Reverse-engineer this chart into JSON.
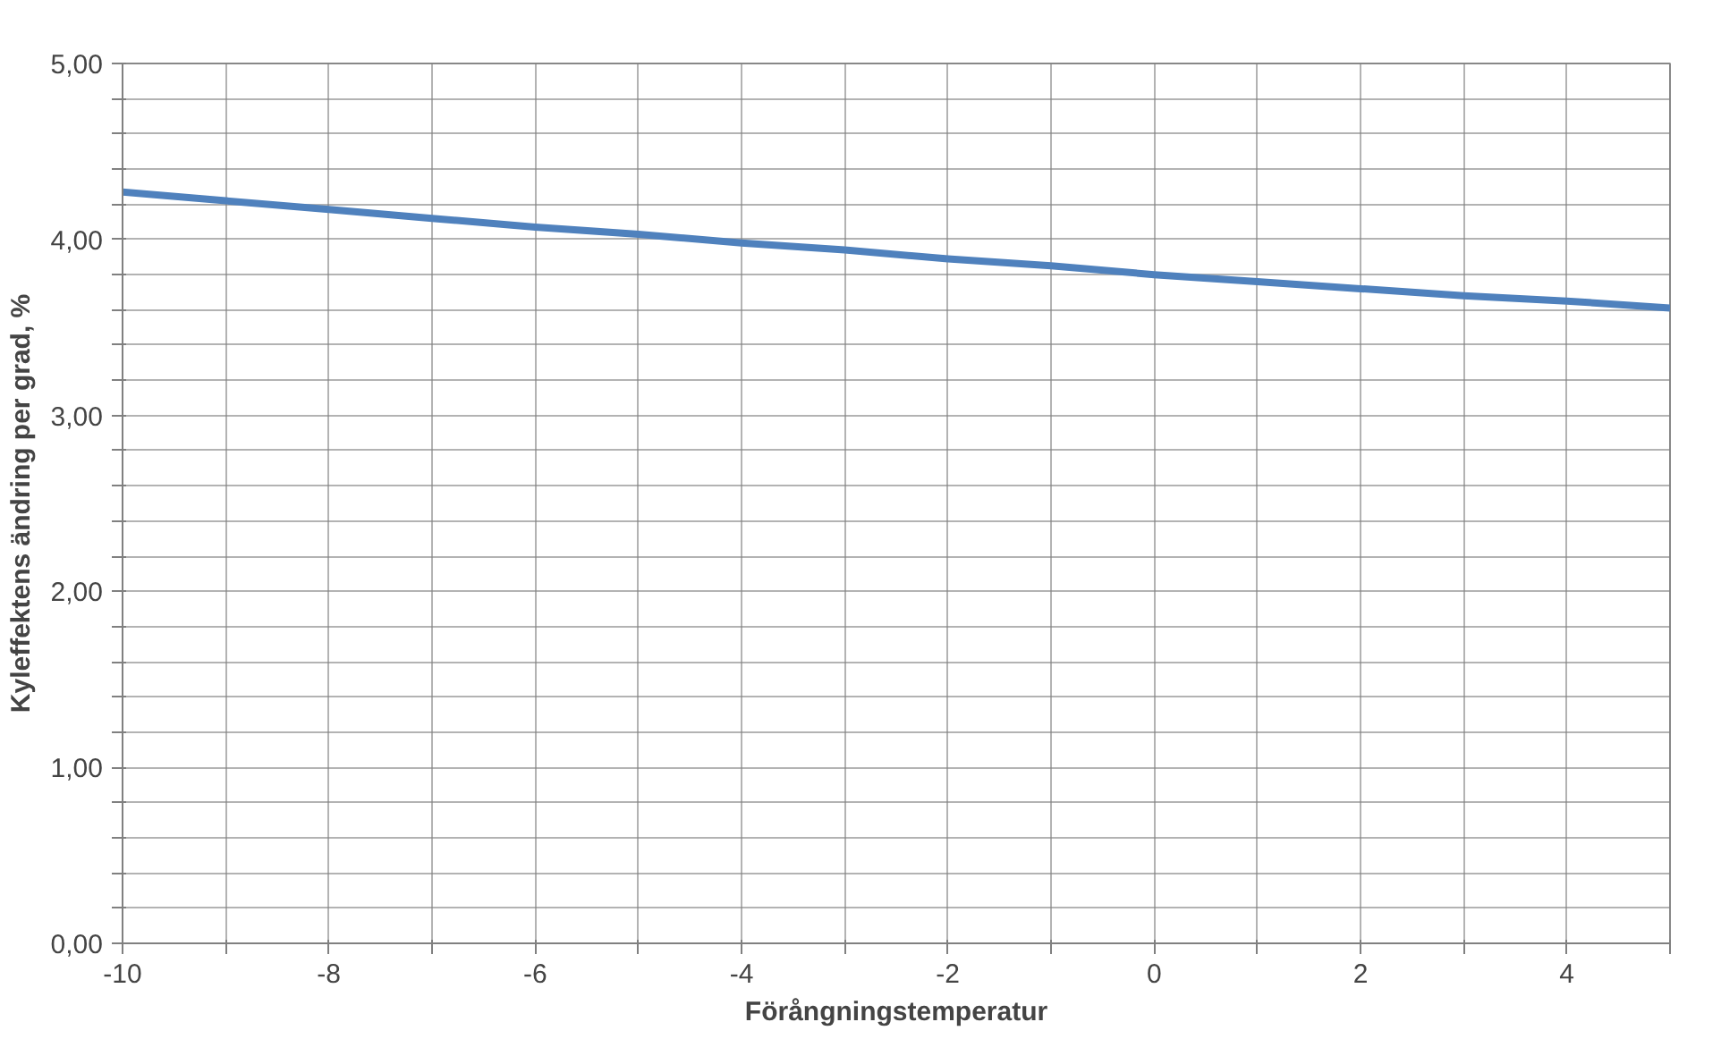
{
  "chart_data": {
    "type": "line",
    "xlabel": "Förångningstemperatur",
    "ylabel": "Kyleffektens ändring per grad, %",
    "x": [
      -10,
      -9,
      -8,
      -7,
      -6,
      -5,
      -4,
      -3,
      -2,
      -1,
      0,
      1,
      2,
      3,
      4,
      5
    ],
    "series": [
      {
        "color": "#4f81bd",
        "values": [
          4.27,
          4.22,
          4.17,
          4.12,
          4.07,
          4.03,
          3.98,
          3.94,
          3.89,
          3.85,
          3.8,
          3.76,
          3.72,
          3.68,
          3.65,
          3.61
        ]
      }
    ],
    "xlim": [
      -10,
      5
    ],
    "ylim": [
      0,
      5
    ],
    "xticks": [
      -10,
      {
        "value": -9,
        "label": null
      },
      -8,
      {
        "value": -7,
        "label": null
      },
      -6,
      {
        "value": -5,
        "label": null
      },
      -4,
      {
        "value": -3,
        "label": null
      },
      -2,
      {
        "value": -1,
        "label": null
      },
      0,
      {
        "value": 1,
        "label": null
      },
      2,
      {
        "value": 3,
        "label": null
      },
      4,
      {
        "value": 5,
        "label": null
      }
    ],
    "yticks": [
      {
        "value": 0,
        "label": "0,00"
      },
      {
        "value": 0.2,
        "label": null
      },
      {
        "value": 0.4,
        "label": null
      },
      {
        "value": 0.6,
        "label": null
      },
      {
        "value": 0.8,
        "label": null
      },
      {
        "value": 1,
        "label": "1,00"
      },
      {
        "value": 1.2,
        "label": null
      },
      {
        "value": 1.4,
        "label": null
      },
      {
        "value": 1.6,
        "label": null
      },
      {
        "value": 1.8,
        "label": null
      },
      {
        "value": 2,
        "label": "2,00"
      },
      {
        "value": 2.2,
        "label": null
      },
      {
        "value": 2.4,
        "label": null
      },
      {
        "value": 2.6,
        "label": null
      },
      {
        "value": 2.8,
        "label": null
      },
      {
        "value": 3,
        "label": "3,00"
      },
      {
        "value": 3.2,
        "label": null
      },
      {
        "value": 3.4,
        "label": null
      },
      {
        "value": 3.6,
        "label": null
      },
      {
        "value": 3.8,
        "label": null
      },
      {
        "value": 4,
        "label": "4,00"
      },
      {
        "value": 4.2,
        "label": null
      },
      {
        "value": 4.4,
        "label": null
      },
      {
        "value": 4.6,
        "label": null
      },
      {
        "value": 4.8,
        "label": null
      },
      {
        "value": 5,
        "label": "5,00"
      }
    ],
    "grid": true,
    "marker": "none",
    "line_style": "solid"
  }
}
